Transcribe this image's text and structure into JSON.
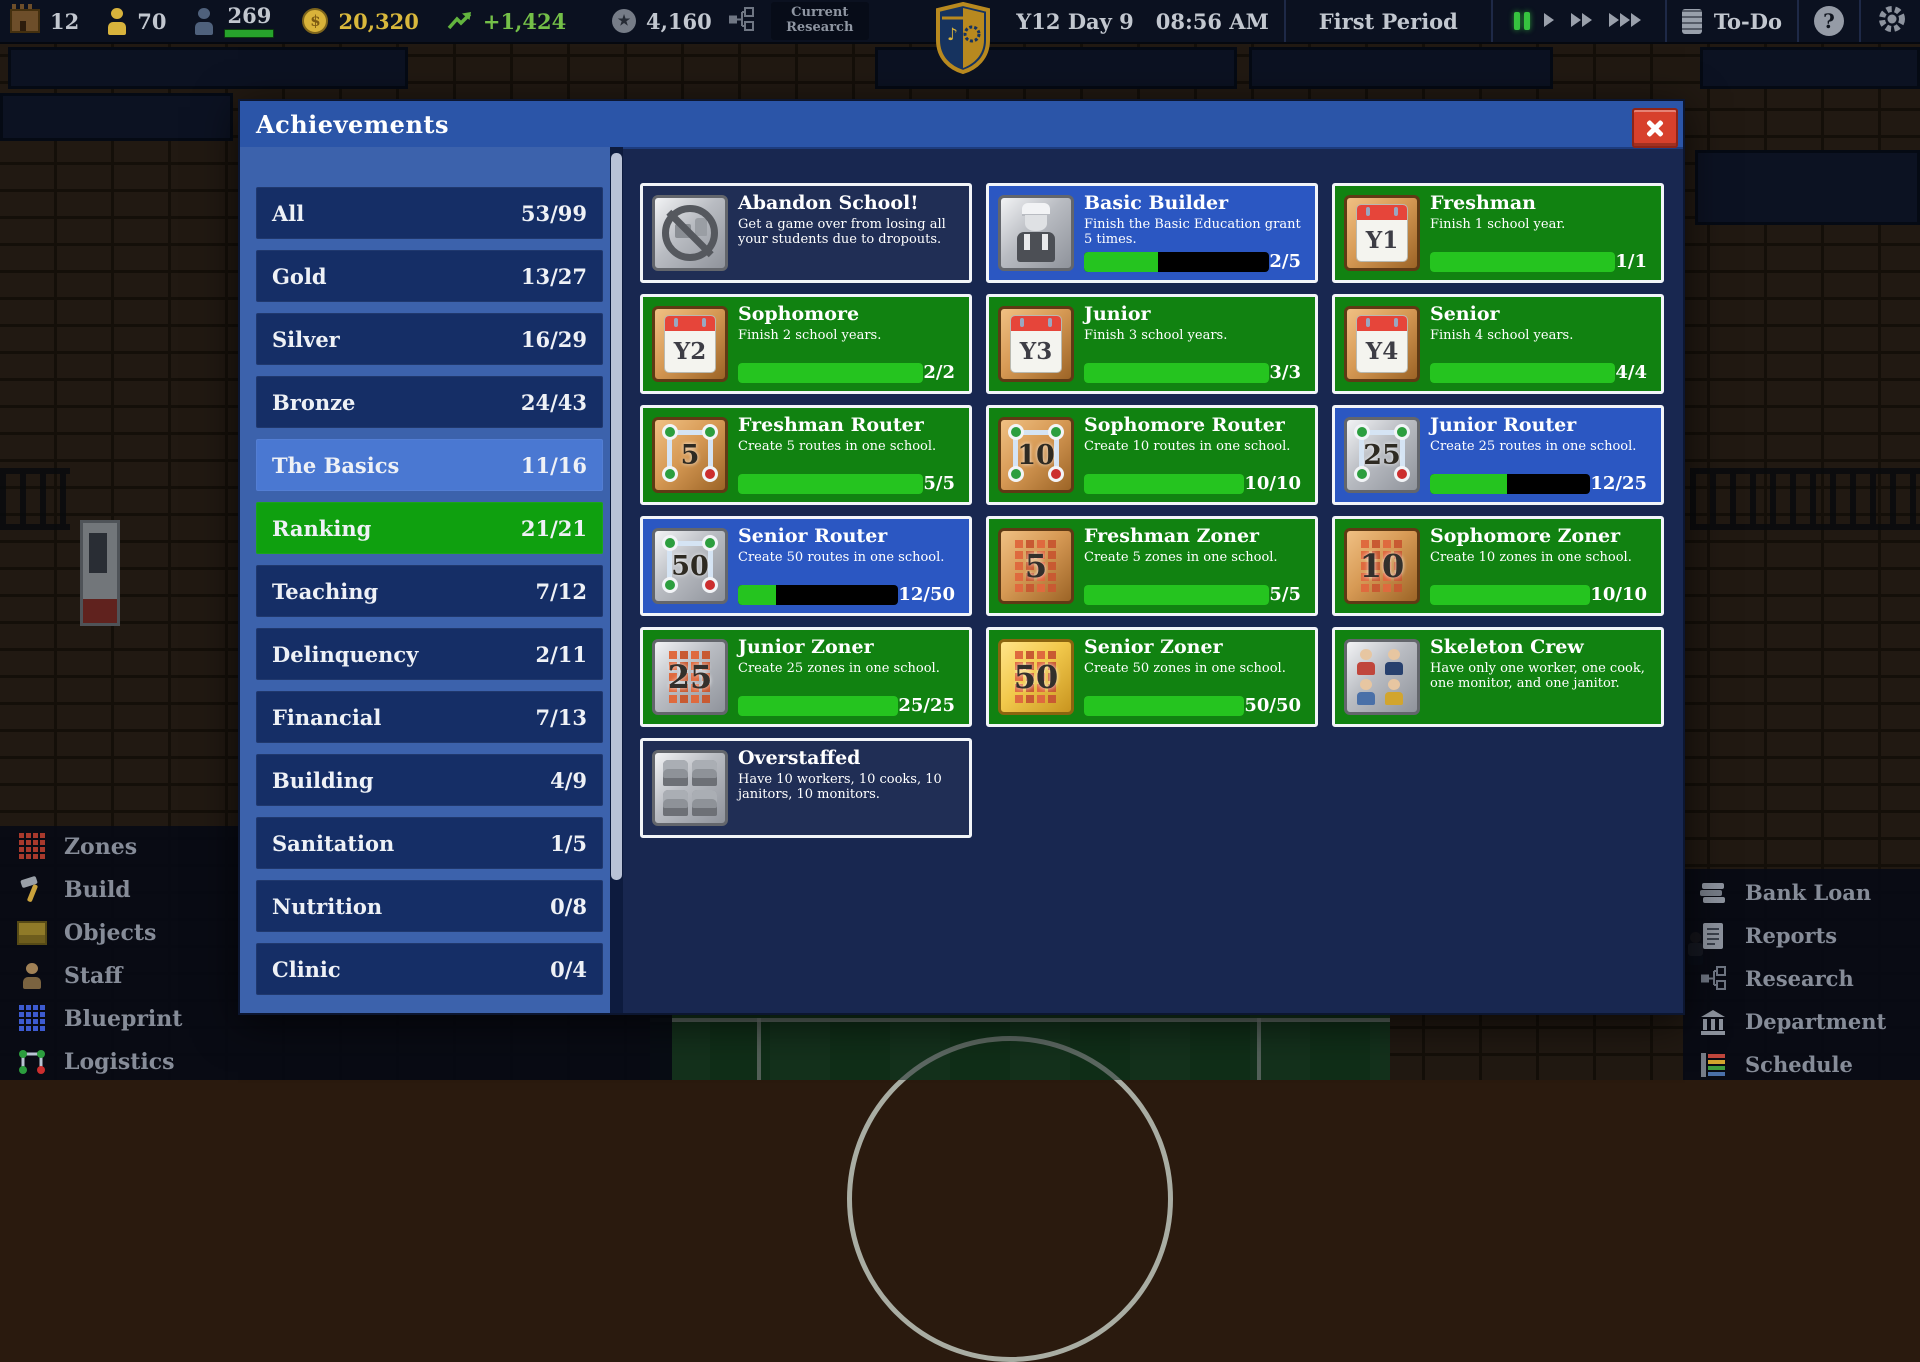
{
  "topbar": {
    "stats": [
      {
        "icon": "school-icon",
        "value": "12"
      },
      {
        "icon": "student-icon",
        "value": "70"
      },
      {
        "icon": "worker-icon",
        "value": "269",
        "bar": true
      },
      {
        "icon": "money-icon",
        "value": "20,320",
        "cls": "money"
      },
      {
        "icon": "profit-icon",
        "value": "+1,424",
        "cls": "profit"
      }
    ],
    "star_stat": {
      "icon": "star-icon",
      "value": "4,160"
    },
    "research_label": "Current Research",
    "date": "Y12  Day 9",
    "time": "08:56 AM",
    "period": "First Period",
    "todo_label": "To-Do",
    "speed_controls": [
      "pause",
      "play",
      "fast",
      "fastest"
    ],
    "accent_colors": {
      "money": "#d9b83c",
      "profit": "#74bf48",
      "pause_active": "#36c33f"
    }
  },
  "dialog": {
    "title": "Achievements",
    "categories": [
      {
        "label": "All",
        "count": "53/99",
        "state": "normal"
      },
      {
        "label": "Gold",
        "count": "13/27",
        "state": "normal"
      },
      {
        "label": "Silver",
        "count": "16/29",
        "state": "normal"
      },
      {
        "label": "Bronze",
        "count": "24/43",
        "state": "normal"
      },
      {
        "label": "The Basics",
        "count": "11/16",
        "state": "selected"
      },
      {
        "label": "Ranking",
        "count": "21/21",
        "state": "complete"
      },
      {
        "label": "Teaching",
        "count": "7/12",
        "state": "normal"
      },
      {
        "label": "Delinquency",
        "count": "2/11",
        "state": "normal"
      },
      {
        "label": "Financial",
        "count": "7/13",
        "state": "normal"
      },
      {
        "label": "Building",
        "count": "4/9",
        "state": "normal"
      },
      {
        "label": "Sanitation",
        "count": "1/5",
        "state": "normal"
      },
      {
        "label": "Nutrition",
        "count": "0/8",
        "state": "normal"
      },
      {
        "label": "Clinic",
        "count": "0/4",
        "state": "normal"
      }
    ],
    "state_colors": {
      "done": "#118211",
      "progress": "#2b57c2",
      "locked": "#202e55"
    },
    "achievements": [
      {
        "title": "Abandon School!",
        "desc": "Get a game over from losing all your students due to dropouts.",
        "state": "locked",
        "icon": {
          "type": "no-entry",
          "metal": "silver",
          "label": ""
        },
        "progress": null
      },
      {
        "title": "Basic Builder",
        "desc": "Finish the Basic Education grant 5 times.",
        "state": "progress",
        "icon": {
          "type": "builder",
          "metal": "silver",
          "label": ""
        },
        "progress": {
          "text": "2/5",
          "pct": 40
        }
      },
      {
        "title": "Freshman",
        "desc": "Finish 1 school year.",
        "state": "done",
        "icon": {
          "type": "calendar",
          "metal": "bronze",
          "label": "Y1"
        },
        "progress": {
          "text": "1/1",
          "pct": 100
        }
      },
      {
        "title": "Sophomore",
        "desc": "Finish 2 school years.",
        "state": "done",
        "icon": {
          "type": "calendar",
          "metal": "bronze",
          "label": "Y2"
        },
        "progress": {
          "text": "2/2",
          "pct": 100
        }
      },
      {
        "title": "Junior",
        "desc": "Finish 3 school years.",
        "state": "done",
        "icon": {
          "type": "calendar",
          "metal": "bronze",
          "label": "Y3"
        },
        "progress": {
          "text": "3/3",
          "pct": 100
        }
      },
      {
        "title": "Senior",
        "desc": "Finish 4 school years.",
        "state": "done",
        "icon": {
          "type": "calendar",
          "metal": "bronze",
          "label": "Y4"
        },
        "progress": {
          "text": "4/4",
          "pct": 100
        }
      },
      {
        "title": "Freshman Router",
        "desc": "Create 5 routes in one school.",
        "state": "done",
        "icon": {
          "type": "router",
          "metal": "bronze",
          "label": "5"
        },
        "progress": {
          "text": "5/5",
          "pct": 100
        }
      },
      {
        "title": "Sophomore Router",
        "desc": "Create 10 routes in one school.",
        "state": "done",
        "icon": {
          "type": "router",
          "metal": "bronze",
          "label": "10"
        },
        "progress": {
          "text": "10/10",
          "pct": 100
        }
      },
      {
        "title": "Junior Router",
        "desc": "Create 25 routes in one school.",
        "state": "progress",
        "icon": {
          "type": "router",
          "metal": "silver",
          "label": "25"
        },
        "progress": {
          "text": "12/25",
          "pct": 48
        }
      },
      {
        "title": "Senior Router",
        "desc": "Create 50 routes in one school.",
        "state": "progress",
        "icon": {
          "type": "router",
          "metal": "silver",
          "label": "50"
        },
        "progress": {
          "text": "12/50",
          "pct": 24
        }
      },
      {
        "title": "Freshman Zoner",
        "desc": "Create 5 zones in one school.",
        "state": "done",
        "icon": {
          "type": "zoner",
          "metal": "bronze",
          "label": "5"
        },
        "progress": {
          "text": "5/5",
          "pct": 100
        }
      },
      {
        "title": "Sophomore Zoner",
        "desc": "Create 10 zones in one school.",
        "state": "done",
        "icon": {
          "type": "zoner",
          "metal": "bronze",
          "label": "10"
        },
        "progress": {
          "text": "10/10",
          "pct": 100
        }
      },
      {
        "title": "Junior Zoner",
        "desc": "Create 25 zones in one school.",
        "state": "done",
        "icon": {
          "type": "zoner",
          "metal": "silver",
          "label": "25"
        },
        "progress": {
          "text": "25/25",
          "pct": 100
        }
      },
      {
        "title": "Senior Zoner",
        "desc": "Create 50 zones in one school.",
        "state": "done",
        "icon": {
          "type": "zoner",
          "metal": "gold",
          "label": "50"
        },
        "progress": {
          "text": "50/50",
          "pct": 100
        }
      },
      {
        "title": "Skeleton Crew",
        "desc": "Have only one worker, one cook, one monitor, and one janitor.",
        "state": "done",
        "icon": {
          "type": "crew",
          "metal": "silver",
          "label": ""
        },
        "progress": null
      },
      {
        "title": "Overstaffed",
        "desc": "Have 10 workers, 10 cooks, 10 janitors, 10 monitors.",
        "state": "locked",
        "icon": {
          "type": "staff-grid",
          "metal": "silver",
          "label": ""
        },
        "progress": null
      }
    ]
  },
  "left_menu": [
    {
      "icon": "zones-icon",
      "label": "Zones"
    },
    {
      "icon": "build-icon",
      "label": "Build"
    },
    {
      "icon": "objects-icon",
      "label": "Objects"
    },
    {
      "icon": "staff-icon",
      "label": "Staff"
    },
    {
      "icon": "blueprint-icon",
      "label": "Blueprint"
    },
    {
      "icon": "logistics-icon",
      "label": "Logistics"
    }
  ],
  "right_menu": [
    {
      "icon": "bank-loan-icon",
      "label": "Bank Loan"
    },
    {
      "icon": "reports-icon",
      "label": "Reports"
    },
    {
      "icon": "research-icon",
      "label": "Research"
    },
    {
      "icon": "department-icon",
      "label": "Department"
    },
    {
      "icon": "schedule-icon",
      "label": "Schedule"
    }
  ]
}
